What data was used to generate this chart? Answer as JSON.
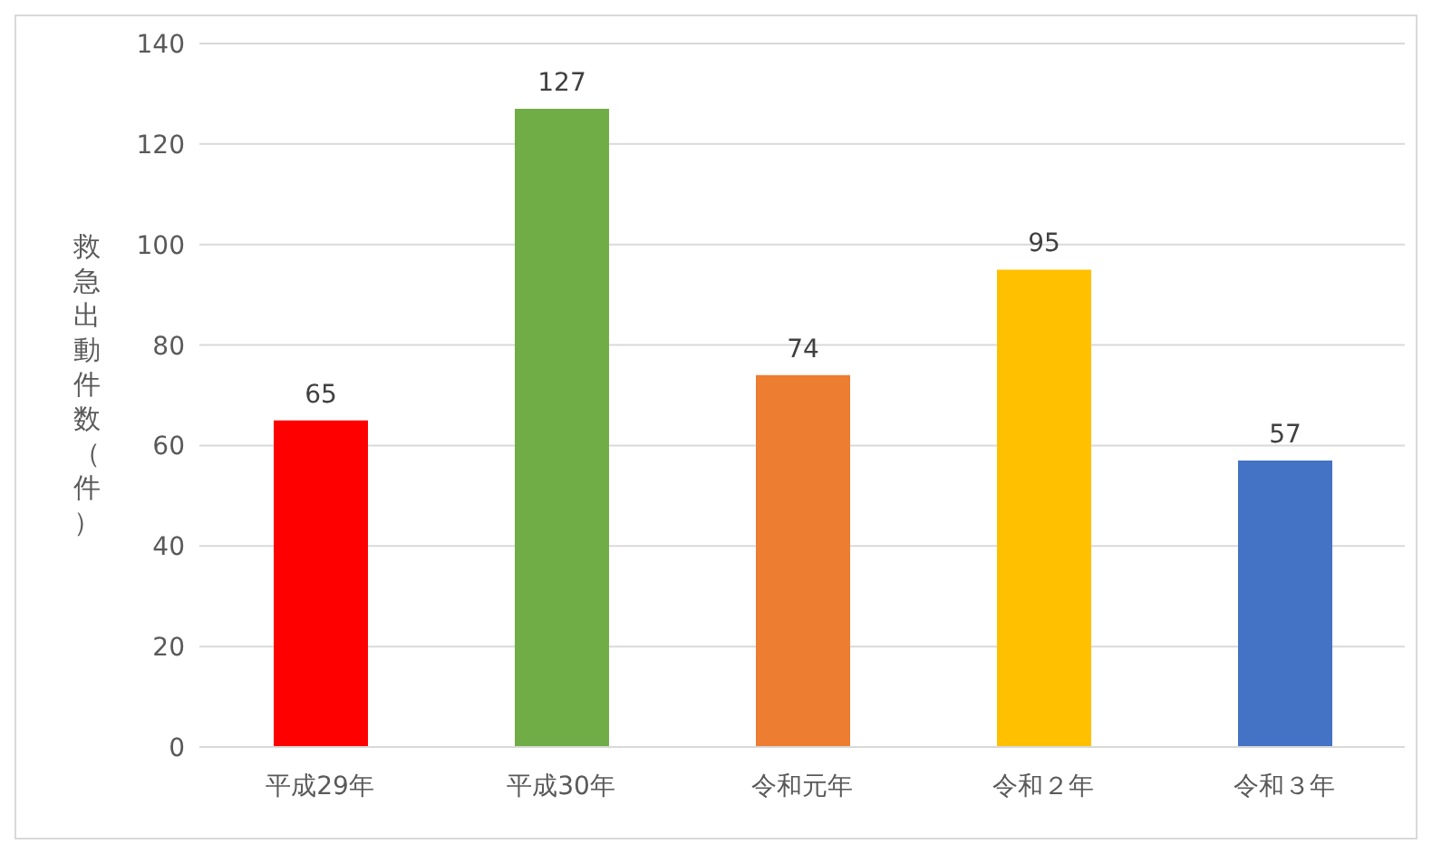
{
  "chart_data": {
    "type": "bar",
    "ylabel": "救急出動件数（件）",
    "categories": [
      "平成29年",
      "平成30年",
      "令和元年",
      "令和２年",
      "令和３年"
    ],
    "values": [
      65,
      127,
      74,
      95,
      57
    ],
    "colors": [
      "#ff0000",
      "#70ad47",
      "#ed7d31",
      "#ffc000",
      "#4472c4"
    ],
    "ylim": [
      0,
      140
    ],
    "yticks": [
      0,
      20,
      40,
      60,
      80,
      100,
      120,
      140
    ],
    "grid": "y",
    "data_labels": true
  }
}
